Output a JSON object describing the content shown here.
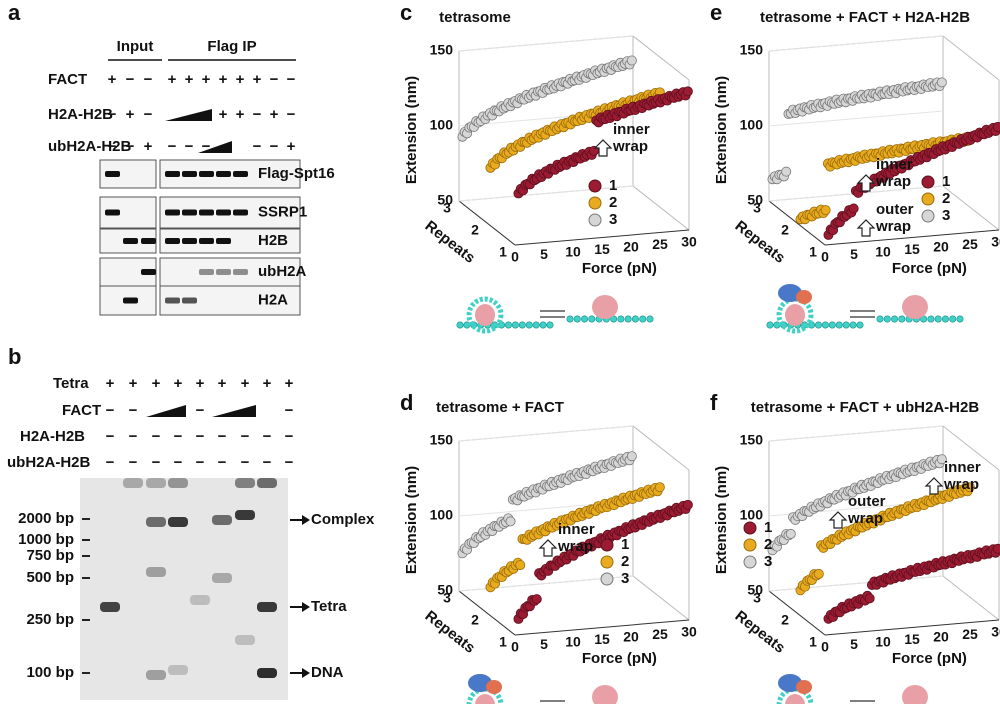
{
  "panel_a": {
    "letter": "a",
    "input": "Input",
    "flag_ip": "Flag IP",
    "rows": [
      {
        "label": "FACT",
        "signs": [
          "+",
          "−",
          "−",
          "+",
          "+",
          "+",
          "+",
          "+",
          "+",
          "−",
          "−"
        ]
      },
      {
        "label": "H2A-H2B",
        "signs": [
          "−",
          "+",
          "−",
          "+",
          "+",
          "−",
          "+",
          "−"
        ]
      },
      {
        "label": "ubH2A-H2B",
        "signs": [
          "−",
          "−",
          "+",
          "−",
          "−",
          "−",
          "−",
          "−",
          "+"
        ]
      }
    ],
    "bands": [
      "Flag-Spt16",
      "SSRP1",
      "H2B",
      "ubH2A",
      "H2A"
    ]
  },
  "panel_b": {
    "letter": "b",
    "rows": [
      {
        "label": "Tetra",
        "signs": [
          "+",
          "+",
          "+",
          "+",
          "+",
          "+",
          "+",
          "+",
          "+"
        ]
      },
      {
        "label": "FACT",
        "signs": [
          "−",
          "−",
          "−",
          "−"
        ]
      },
      {
        "label": "H2A-H2B",
        "signs": [
          "−",
          "−",
          "−",
          "−",
          "−",
          "−",
          "−",
          "−",
          "−"
        ]
      },
      {
        "label": "ubH2A-H2B",
        "signs": [
          "−",
          "−",
          "−",
          "−",
          "−",
          "−",
          "−",
          "−",
          "−"
        ]
      }
    ],
    "markers": [
      "2000 bp",
      "1000 bp",
      "750 bp",
      "500 bp",
      "250 bp",
      "100 bp"
    ],
    "arrows": [
      "Complex",
      "Tetra",
      "DNA"
    ]
  },
  "plot_axes": {
    "y_label": "Extension (nm)",
    "yticks": [
      150,
      100,
      50
    ],
    "depth_label": "Repeats",
    "depth_ticks": [
      3,
      2,
      1
    ],
    "x_label": "Force (pN)",
    "xticks": [
      0,
      5,
      10,
      15,
      20,
      25,
      30
    ],
    "legend": [
      "1",
      "2",
      "3"
    ]
  },
  "panels": [
    {
      "letter": "c",
      "title": "tetrasome",
      "annotations": [
        [
          "inner",
          "wrap"
        ]
      ]
    },
    {
      "letter": "d",
      "title": "tetrasome + FACT",
      "annotations": [
        [
          "inner",
          "wrap"
        ]
      ]
    },
    {
      "letter": "e",
      "title": "tetrasome + FACT + H2A-H2B",
      "annotations": [
        [
          "inner",
          "wrap"
        ],
        [
          "outer",
          "wrap"
        ]
      ]
    },
    {
      "letter": "f",
      "title": "tetrasome + FACT + ubH2A-H2B",
      "annotations": [
        [
          "inner",
          "wrap"
        ],
        [
          "outer",
          "wrap"
        ]
      ]
    }
  ]
}
